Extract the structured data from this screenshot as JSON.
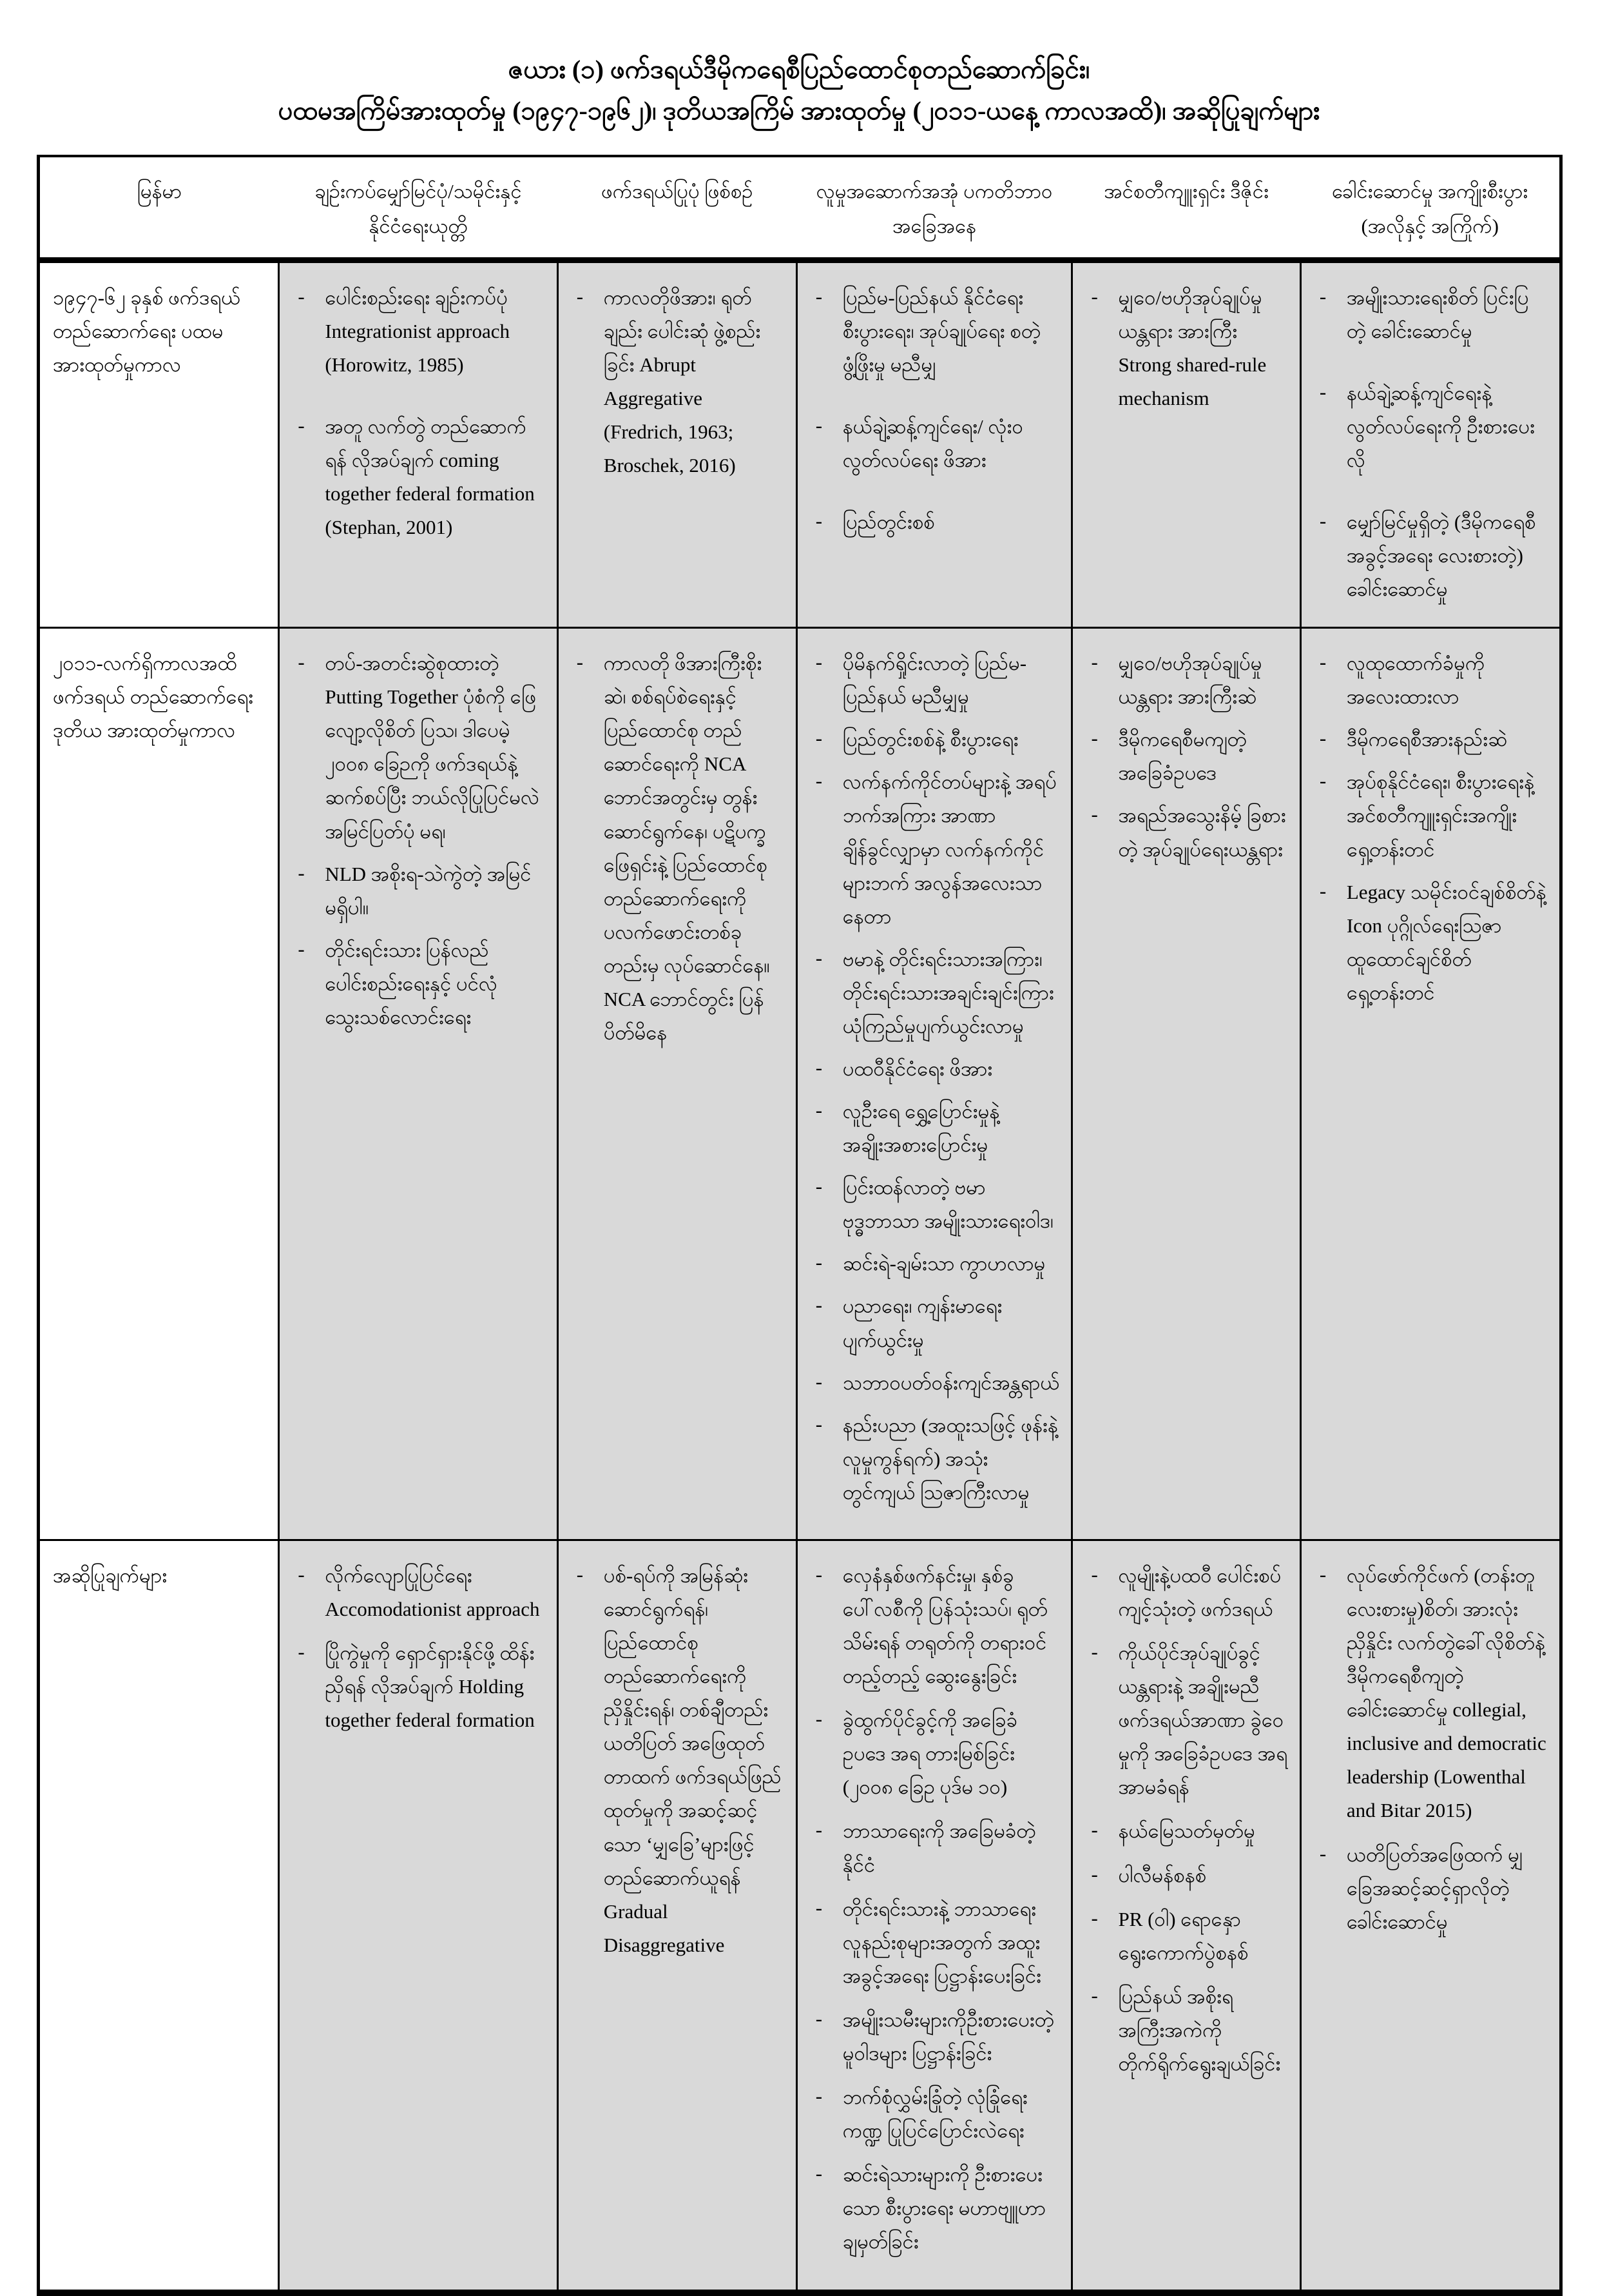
{
  "title": {
    "line1": "ဇယား (၁) ဖက်ဒရယ်ဒီမိုကရေစီပြည်ထောင်စုတည်ဆောက်ခြင်း၊",
    "line2": "ပထမအကြိမ်အားထုတ်မှု (၁၉၄၇-၁၉၆၂)၊ ဒုတိယအကြိမ် အားထုတ်မှု (၂၀၁၁-ယနေ့ ကာလအထိ)၊ အဆိုပြုချက်များ"
  },
  "table": {
    "headers": [
      "မြန်မာ",
      "ချဉ်းကပ်မျှော်မြင်ပုံ/သမိုင်းနှင့် နိုင်ငံရေးယုတ္တိ",
      "ဖက်ဒရယ်ပြုပုံ ဖြစ်စဉ်",
      "လူမှုအဆောက်အအုံ ပကတိဘာဝ အခြေအနေ",
      "အင်စတီကျူးရှင်း ဒီဇိုင်း",
      "ခေါင်းဆောင်မှု အကျိုးစီးပွား (အလိုနှင့် အကြိုက်)"
    ],
    "rows": [
      {
        "label": "၁၉၄၇-၆၂ ခုနှစ် ဖက်ဒရယ်တည်ဆောက်ရေး ပထမအားထုတ်မှုကာလ",
        "cells": [
          [
            "ပေါင်းစည်းရေး ချဉ်းကပ်ပုံ Integrationist approach (Horowitz, 1985)",
            "အတူ လက်တွဲ တည်ဆောက်ရန် လိုအပ်ချက် coming together federal formation (Stephan, 2001)"
          ],
          [
            "ကာလတိုဖိအား၊ ရုတ်ချည်း ပေါင်းဆုံ ဖွဲ့စည်းခြင်း Abrupt Aggregative (Fredrich, 1963; Broschek, 2016)"
          ],
          [
            "ပြည်မ-ပြည်နယ် နိုင်ငံရေး စီးပွားရေး၊ အုပ်ချုပ်ရေး စတဲ့ ဖွံ့ဖြိုးမှု မညီမျှ",
            "နယ်ချဲ့ဆန့်ကျင်ရေး/ လုံးဝလွတ်လပ်ရေး ဖိအား",
            "ပြည်တွင်းစစ်"
          ],
          [
            "မျှဝေ/ဗဟိုအုပ်ချုပ်မှု ယန္တရား အားကြီး Strong shared-rule mechanism"
          ],
          [
            "အမျိုးသားရေးစိတ် ပြင်းပြတဲ့ ခေါင်းဆောင်မှု",
            "နယ်ချဲ့ဆန့်ကျင်ရေးနဲ့ လွတ်လပ်ရေးကို ဦးစားပေးလို",
            "မျှော်မြင်မှုရှိတဲ့ (ဒီမိုကရေစီ အခွင့်အရေး လေးစားတဲ့) ခေါင်းဆောင်မှု"
          ]
        ]
      },
      {
        "label": "၂၀၁၁-လက်ရှိကာလအထိ ဖက်ဒရယ် တည်ဆောက်ရေး ဒုတိယ အားထုတ်မှုကာလ",
        "cells": [
          [
            "တပ်-အတင်းဆွဲစုထားတဲ့ Putting Together ပုံစံကို ဖြေလျော့လိုစိတ် ပြသ၊ ဒါပေမဲ့ ၂၀၀၈ ခြေဉကို ဖက်ဒရယ်နဲ့ ဆက်စပ်ပြီး ဘယ်လိုပြုပြင်မလဲ အမြင်ပြတ်ပုံ မရ၊",
            "NLD အစိုးရ-သဲကွဲတဲ့ အမြင် မရှိပါ။",
            "တိုင်းရင်းသား ပြန်လည်ပေါင်းစည်းရေးနှင့် ပင်လုံ သွေးသစ်လောင်းရေး"
          ],
          [
            "ကာလတို ဖိအားကြီးစိုးဆဲ၊ စစ်ရပ်စဲရေးနှင့် ပြည်ထောင်စု တည်ဆောင်ရေးကို NCA ဘောင်အတွင်းမှ တွန်း ဆောင်ရွက်နေ၊ ပဋိပက္ခဖြေရှင်းနဲ့ ပြည်ထောင်စု တည်ဆောက်ရေးကို ပလက်ဖောင်းတစ်ခုတည်းမှ လုပ်ဆောင်နေ။ NCA ဘောင်တွင်း ပြန်ပိတ်မိနေ"
          ],
          [
            "ပိုမိနက်ရှိုင်းလာတဲ့ ပြည်မ-ပြည်နယ် မညီမျှမှု",
            "ပြည်တွင်းစစ်နဲ့ စီးပွားရေး",
            "လက်နက်ကိုင်တပ်များနဲ့ အရပ်ဘက်အကြား အာဏာချိန်ခွင်လျှာမှာ လက်နက်ကိုင်များဘက် အလွန်အလေးသာနေတာ",
            "ဗမာနဲ့ တိုင်းရင်းသားအကြား၊ တိုင်းရင်းသားအချင်းချင်းကြား ယုံကြည်မှုပျက်ယွင်းလာမှု",
            "ပထဝီနိုင်ငံရေး ဖိအား",
            "လူဦးရေ ရွှေ့ပြောင်းမှုနဲ့ အချိုးအစားပြောင်းမှု",
            "ပြင်းထန်လာတဲ့ ဗမာဗုဒ္ဓဘာသာ အမျိုးသားရေးဝါဒ၊",
            "ဆင်းရဲ-ချမ်းသာ ကွာဟလာမှု",
            "ပညာရေး၊ ကျန်းမာရေး ပျက်ယွင်းမှု",
            "သဘာဝပတ်ဝန်းကျင်အန္တရာယ်",
            "နည်းပညာ (အထူးသဖြင့် ဖုန်းနဲ့ လူမှုကွန်ရက်) အသုံး တွင်ကျယ် ဩဇာကြီးလာမှု"
          ],
          [
            "မျှဝေ/ဗဟိုအုပ်ချုပ်မှု ယန္တရား အားကြီးဆဲ",
            "ဒီမိုကရေစီမကျတဲ့ အခြေခံဥပဒေ",
            "အရည်အသွေးနိမ့် ခြစားတဲ့ အုပ်ချုပ်ရေးယန္တရား"
          ],
          [
            "လူထုထောက်ခံမှုကို အလေးထားလာ",
            "ဒီမိုကရေစီအားနည်းဆဲ",
            "အုပ်စုနိုင်ငံရေး၊ စီးပွားရေးနဲ့ အင်စတီကျူးရှင်းအကျိုး ရှေ့တန်းတင်",
            "Legacy သမိုင်းဝင်ချစ်စိတ်နဲ့ Icon ပုဂ္ဂိုလ်ရေးဩဇာ ထူထောင်ချင်စိတ် ရှေ့တန်းတင်"
          ]
        ]
      },
      {
        "label": "အဆိုပြုချက်များ",
        "cells": [
          [
            "လိုက်လျောပြုပြင်ရေး Accomodationist approach",
            "ပြိုကွဲမှုကို ရှောင်ရှားနိုင်ဖို့ ထိန်းညှိရန် လိုအပ်ချက် Holding together federal formation"
          ],
          [
            "ပစ်-ရပ်ကို အမြန်ဆုံး ဆောင်ရွက်ရန်၊ ပြည်ထောင်စု တည်ဆောက်ရေးကို ညှိနှိုင်းရန်၊ တစ်ချီတည်း ယတိပြတ် အဖြေထုတ်တာထက် ဖက်ဒရယ်ဖြည်ထုတ်မှုကို အဆင့်ဆင့်သော ‘မျှခြေ’များဖြင့် တည်ဆောက်ယူရန် Gradual Disaggregative"
          ],
          [
            "လှေနံနှစ်ဖက်နင်းမှု၊ နှစ်ခွ ပေါ်လစီကို ပြန်သုံးသပ်၊ ရုတ်သိမ်းရန် တရုတ်ကို တရားဝင် တည့်တည့် ဆွေးနွေးခြင်း",
            "ခွဲထွက်ပိုင်ခွင့်ကို အခြေခံဥပဒေ အရ တားမြစ်ခြင်း (၂၀၀၈ ခြေဥ ပုဒ်မ ၁၀)",
            "ဘာသာရေးကို အခြေမခံတဲ့ နိုင်ငံ",
            "တိုင်းရင်းသားနဲ့ ဘာသာရေး လူနည်းစုများအတွက် အထူး အခွင့်အရေး ပြဋ္ဌာန်းပေးခြင်း",
            "အမျိုးသမီးများကိုဦးစားပေးတဲ့ မူဝါဒများ ပြဋ္ဌာန်းခြင်း",
            "ဘက်စုံလွှမ်းခြုံတဲ့ လုံခြုံရေး ကဏ္ဍ ပြုပြင်ပြောင်းလဲရေး",
            "ဆင်းရဲသားများကို ဦးစားပေးသော စီးပွားရေး မဟာဗျူဟာ ချမှတ်ခြင်း"
          ],
          [
            "လူမျိုးနဲ့ပထဝီ ပေါင်းစပ် ကျင့်သုံးတဲ့ ဖက်ဒရယ်",
            "ကိုယ်ပိုင်အုပ်ချုပ်ခွင့် ယန္တရားနဲ့ အချိုးမညီ ဖက်ဒရယ်အာဏာ ခွဲဝေမှုကို အခြေခံဥပဒေ အရ အာမခံရန်",
            "နယ်မြေသတ်မှတ်မှု",
            "ပါလီမန်စနစ်",
            "PR (ဝါ) ရောနှော ရွေးကောက်ပွဲစနစ်",
            "ပြည်နယ် အစိုးရ အကြီးအကဲကို တိုက်ရိုက်ရွေးချယ်ခြင်း"
          ],
          [
            "လုပ်ဖော်ကိုင်ဖက် (တန်းတူလေးစားမှု)စိတ်၊ အားလုံးညှိနှိုင်း လက်တွဲခေါ်လိုစိတ်နဲ့ ဒီမိုကရေစီကျတဲ့ ခေါင်းဆောင်မှု collegial, inclusive and democratic leadership (Lowenthal and Bitar 2015)",
            "ယတိပြတ်အဖြေထက် မျှခြေအဆင့်ဆင့်ရှာလိုတဲ့ ခေါင်းဆောင်မှု"
          ]
        ]
      }
    ]
  }
}
